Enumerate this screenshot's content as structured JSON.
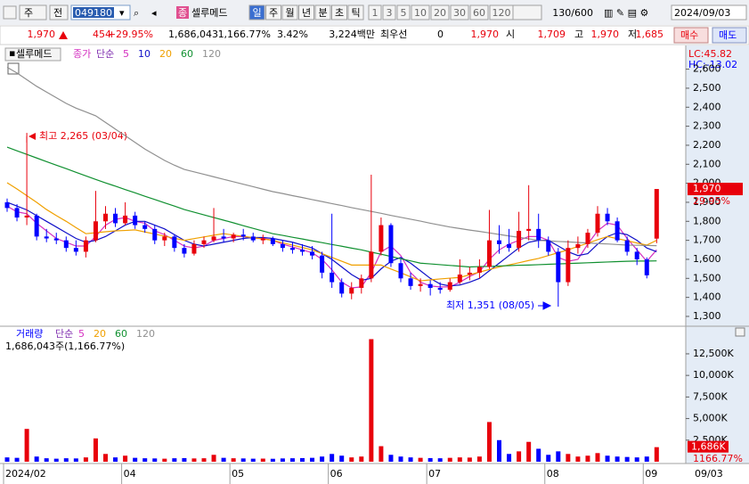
{
  "toolbar": {
    "market": "주",
    "prev": "전",
    "code": "049180",
    "tag": "종",
    "name": "셀루메드",
    "periods": [
      "일",
      "주",
      "월",
      "년",
      "분",
      "초",
      "틱"
    ],
    "intervals": [
      "1",
      "3",
      "5",
      "10",
      "20",
      "30",
      "60",
      "120"
    ],
    "count": "130/600",
    "date": "2024/09/03"
  },
  "quote": {
    "price": "1,970",
    "change": "454",
    "change_rate": "+29.95%",
    "volume": "1,686,043",
    "volume_rate": "1,166.77%",
    "turnover": "3.42%",
    "amount": "3,224백만",
    "best_label": "최우선",
    "best": "0",
    "ask": "1,970",
    "open_label": "시",
    "open": "1,709",
    "high_label": "고",
    "high": "1,970",
    "low_label": "저",
    "low": "1,685",
    "buy": "매수",
    "sell": "매도"
  },
  "chart_data": [
    {
      "type": "candlestick",
      "legend_name": "셀루메드",
      "legend_field": "종가",
      "legend_method": "단순",
      "lc": "LC:45.82",
      "hc": "HC:-13.02",
      "last_label": "1,970",
      "last_change": "29.95%",
      "x_end_label": "09/03",
      "up_color": "#e8000b",
      "down_color": "#0000ff",
      "annotations": {
        "high": "최고 2,265 (03/04)",
        "low": "최저 1,351 (08/05)"
      },
      "categories": [
        "2024/02",
        null,
        null,
        null,
        null,
        null,
        null,
        null,
        null,
        null,
        null,
        null,
        "04",
        null,
        null,
        null,
        null,
        null,
        null,
        null,
        null,
        null,
        null,
        "05",
        null,
        null,
        null,
        null,
        null,
        null,
        null,
        null,
        null,
        "06",
        null,
        null,
        null,
        null,
        null,
        null,
        null,
        null,
        null,
        "07",
        null,
        null,
        null,
        null,
        null,
        null,
        null,
        null,
        null,
        null,
        null,
        "08",
        null,
        null,
        null,
        null,
        null,
        null,
        null,
        null,
        null,
        "09",
        null
      ],
      "ylim": [
        1253,
        2706
      ],
      "yticks": [
        {
          "value": 1300,
          "label": "1,300"
        },
        {
          "value": 1400,
          "label": "1,400"
        },
        {
          "value": 1500,
          "label": "1,500"
        },
        {
          "value": 1600,
          "label": "1,600"
        },
        {
          "value": 1700,
          "label": "1,700"
        },
        {
          "value": 1800,
          "label": "1,800"
        },
        {
          "value": 1900,
          "label": "1,900"
        },
        {
          "value": 2000,
          "label": "2,000"
        },
        {
          "value": 2100,
          "label": "2,100"
        },
        {
          "value": 2200,
          "label": "2,200"
        },
        {
          "value": 2300,
          "label": "2,300"
        },
        {
          "value": 2400,
          "label": "2,400"
        },
        {
          "value": 2500,
          "label": "2,500"
        },
        {
          "value": 2600,
          "label": "2,600"
        }
      ],
      "ohlc": [
        [
          1900,
          1920,
          1850,
          1870
        ],
        [
          1870,
          1890,
          1800,
          1820
        ],
        [
          1820,
          2265,
          1780,
          1830
        ],
        [
          1830,
          1840,
          1700,
          1720
        ],
        [
          1720,
          1760,
          1690,
          1710
        ],
        [
          1710,
          1740,
          1680,
          1700
        ],
        [
          1700,
          1720,
          1640,
          1660
        ],
        [
          1660,
          1700,
          1620,
          1640
        ],
        [
          1640,
          1720,
          1610,
          1700
        ],
        [
          1700,
          1960,
          1690,
          1800
        ],
        [
          1800,
          1880,
          1760,
          1840
        ],
        [
          1840,
          1870,
          1770,
          1790
        ],
        [
          1790,
          1900,
          1780,
          1830
        ],
        [
          1830,
          1850,
          1760,
          1780
        ],
        [
          1780,
          1800,
          1740,
          1760
        ],
        [
          1760,
          1780,
          1680,
          1700
        ],
        [
          1700,
          1740,
          1670,
          1720
        ],
        [
          1720,
          1730,
          1640,
          1660
        ],
        [
          1660,
          1680,
          1610,
          1630
        ],
        [
          1630,
          1700,
          1620,
          1680
        ],
        [
          1680,
          1720,
          1660,
          1700
        ],
        [
          1700,
          1870,
          1690,
          1720
        ],
        [
          1720,
          1760,
          1690,
          1710
        ],
        [
          1710,
          1740,
          1690,
          1730
        ],
        [
          1730,
          1760,
          1700,
          1720
        ],
        [
          1720,
          1740,
          1690,
          1700
        ],
        [
          1700,
          1730,
          1680,
          1710
        ],
        [
          1710,
          1720,
          1670,
          1680
        ],
        [
          1680,
          1700,
          1640,
          1660
        ],
        [
          1660,
          1690,
          1630,
          1650
        ],
        [
          1650,
          1680,
          1620,
          1640
        ],
        [
          1640,
          1670,
          1600,
          1620
        ],
        [
          1620,
          1640,
          1500,
          1530
        ],
        [
          1530,
          1840,
          1450,
          1480
        ],
        [
          1480,
          1500,
          1400,
          1420
        ],
        [
          1420,
          1480,
          1390,
          1450
        ],
        [
          1450,
          1520,
          1420,
          1500
        ],
        [
          1500,
          2045,
          1480,
          1640
        ],
        [
          1640,
          1820,
          1620,
          1780
        ],
        [
          1780,
          1790,
          1560,
          1580
        ],
        [
          1580,
          1600,
          1480,
          1500
        ],
        [
          1500,
          1530,
          1440,
          1460
        ],
        [
          1460,
          1500,
          1430,
          1470
        ],
        [
          1470,
          1490,
          1410,
          1450
        ],
        [
          1450,
          1480,
          1420,
          1440
        ],
        [
          1440,
          1500,
          1430,
          1480
        ],
        [
          1480,
          1600,
          1470,
          1520
        ],
        [
          1520,
          1560,
          1490,
          1530
        ],
        [
          1530,
          1600,
          1500,
          1560
        ],
        [
          1560,
          1860,
          1550,
          1700
        ],
        [
          1700,
          1780,
          1630,
          1680
        ],
        [
          1680,
          1760,
          1640,
          1660
        ],
        [
          1660,
          1850,
          1640,
          1750
        ],
        [
          1750,
          1990,
          1700,
          1760
        ],
        [
          1760,
          1840,
          1660,
          1700
        ],
        [
          1700,
          1720,
          1620,
          1640
        ],
        [
          1640,
          1660,
          1351,
          1480
        ],
        [
          1480,
          1700,
          1460,
          1660
        ],
        [
          1660,
          1720,
          1630,
          1680
        ],
        [
          1680,
          1760,
          1660,
          1740
        ],
        [
          1740,
          1880,
          1720,
          1840
        ],
        [
          1840,
          1870,
          1780,
          1800
        ],
        [
          1800,
          1820,
          1690,
          1700
        ],
        [
          1700,
          1720,
          1620,
          1640
        ],
        [
          1640,
          1660,
          1570,
          1600
        ],
        [
          1600,
          1610,
          1500,
          1516
        ],
        [
          1709,
          1970,
          1685,
          1970
        ]
      ],
      "series": [
        {
          "name": "5",
          "color": "#d42fc0",
          "values": [
            1880,
            1850,
            1840,
            1790,
            1750,
            1710,
            1690,
            1670,
            1670,
            1720,
            1780,
            1810,
            1820,
            1800,
            1790,
            1750,
            1730,
            1700,
            1670,
            1660,
            1670,
            1700,
            1710,
            1720,
            1720,
            1710,
            1710,
            1700,
            1680,
            1665,
            1650,
            1635,
            1600,
            1545,
            1480,
            1450,
            1455,
            1530,
            1640,
            1670,
            1620,
            1530,
            1480,
            1460,
            1455,
            1455,
            1480,
            1510,
            1535,
            1600,
            1650,
            1680,
            1700,
            1720,
            1720,
            1700,
            1610,
            1590,
            1600,
            1680,
            1750,
            1790,
            1780,
            1710,
            1650,
            1590,
            1650
          ]
        },
        {
          "name": "10",
          "color": "#1010c8",
          "values": [
            1900,
            1880,
            1860,
            1830,
            1800,
            1770,
            1740,
            1710,
            1690,
            1700,
            1720,
            1750,
            1780,
            1800,
            1800,
            1780,
            1760,
            1730,
            1700,
            1680,
            1670,
            1680,
            1690,
            1700,
            1710,
            1715,
            1715,
            1710,
            1700,
            1690,
            1675,
            1660,
            1630,
            1600,
            1560,
            1520,
            1490,
            1500,
            1550,
            1590,
            1610,
            1580,
            1540,
            1500,
            1470,
            1460,
            1465,
            1480,
            1500,
            1540,
            1580,
            1620,
            1660,
            1690,
            1700,
            1700,
            1670,
            1640,
            1620,
            1630,
            1680,
            1720,
            1740,
            1730,
            1700,
            1660,
            1640
          ]
        },
        {
          "name": "20",
          "color": "#f0a000",
          "values": [
            2003,
            1970,
            1935,
            1900,
            1862,
            1830,
            1800,
            1767,
            1735,
            1740,
            1745,
            1750,
            1752,
            1755,
            1744,
            1733,
            1722,
            1711,
            1700,
            1709,
            1718,
            1727,
            1735,
            1728,
            1721,
            1714,
            1707,
            1700,
            1687,
            1675,
            1662,
            1650,
            1630,
            1610,
            1590,
            1570,
            1570,
            1570,
            1570,
            1549,
            1529,
            1508,
            1487,
            1492,
            1497,
            1501,
            1505,
            1519,
            1533,
            1547,
            1560,
            1571,
            1582,
            1594,
            1605,
            1620,
            1635,
            1650,
            1668,
            1685,
            1703,
            1720,
            1709,
            1698,
            1686,
            1675,
            1700
          ]
        },
        {
          "name": "60",
          "color": "#109030",
          "values": [
            2190,
            2171,
            2152,
            2133,
            2114,
            2095,
            2077,
            2058,
            2039,
            2020,
            2002,
            1985,
            1967,
            1950,
            1932,
            1915,
            1897,
            1880,
            1862,
            1848,
            1834,
            1820,
            1806,
            1792,
            1777,
            1763,
            1749,
            1735,
            1726,
            1716,
            1707,
            1697,
            1688,
            1678,
            1669,
            1659,
            1650,
            1638,
            1627,
            1615,
            1603,
            1592,
            1580,
            1576,
            1572,
            1568,
            1564,
            1560,
            1562,
            1563,
            1565,
            1567,
            1569,
            1570,
            1572,
            1574,
            1576,
            1578,
            1580,
            1582,
            1584,
            1586,
            1588,
            1590,
            1591,
            1591,
            1592
          ]
        },
        {
          "name": "120",
          "color": "#909090",
          "values": [
            2610,
            2580,
            2545,
            2510,
            2480,
            2450,
            2420,
            2395,
            2375,
            2355,
            2320,
            2285,
            2250,
            2215,
            2180,
            2150,
            2120,
            2095,
            2073,
            2060,
            2047,
            2034,
            2021,
            2008,
            1995,
            1982,
            1969,
            1956,
            1946,
            1935,
            1925,
            1914,
            1904,
            1893,
            1883,
            1872,
            1862,
            1852,
            1842,
            1831,
            1821,
            1811,
            1801,
            1790,
            1780,
            1770,
            1762,
            1754,
            1747,
            1739,
            1731,
            1723,
            1716,
            1708,
            1700,
            1697,
            1694,
            1692,
            1689,
            1686,
            1683,
            1681,
            1678,
            1675,
            1674,
            1673,
            1672
          ]
        }
      ]
    },
    {
      "type": "bar",
      "title": "거래량",
      "method": "단순",
      "summary": "1,686,043주(1,166.77%)",
      "last_label": "1,686K",
      "last_rate": "1166.77%",
      "legend": [
        {
          "name": "5",
          "color": "#d42fc0"
        },
        {
          "name": "20",
          "color": "#f0a000"
        },
        {
          "name": "60",
          "color": "#109030"
        },
        {
          "name": "120",
          "color": "#909090"
        }
      ],
      "ylim": [
        0,
        14250000
      ],
      "yticks": [
        {
          "value": 2500000,
          "label": "2,500K"
        },
        {
          "value": 5000000,
          "label": "5,000K"
        },
        {
          "value": 7500000,
          "label": "7,500K"
        },
        {
          "value": 10000000,
          "label": "10,000K"
        },
        {
          "value": 12500000,
          "label": "12,500K"
        }
      ],
      "values": [
        500000,
        450000,
        3800000,
        600000,
        400000,
        350000,
        400000,
        380000,
        500000,
        2700000,
        900000,
        500000,
        700000,
        450000,
        400000,
        380000,
        350000,
        400000,
        420000,
        380000,
        400000,
        800000,
        450000,
        400000,
        380000,
        350000,
        360000,
        340000,
        380000,
        400000,
        420000,
        450000,
        600000,
        900000,
        700000,
        500000,
        600000,
        14200000,
        1800000,
        800000,
        600000,
        500000,
        450000,
        420000,
        400000,
        450000,
        500000,
        480000,
        600000,
        4600000,
        2500000,
        900000,
        1200000,
        2300000,
        1500000,
        800000,
        1200000,
        900000,
        600000,
        700000,
        1000000,
        700000,
        600000,
        550000,
        500000,
        600000,
        1686043
      ]
    }
  ]
}
